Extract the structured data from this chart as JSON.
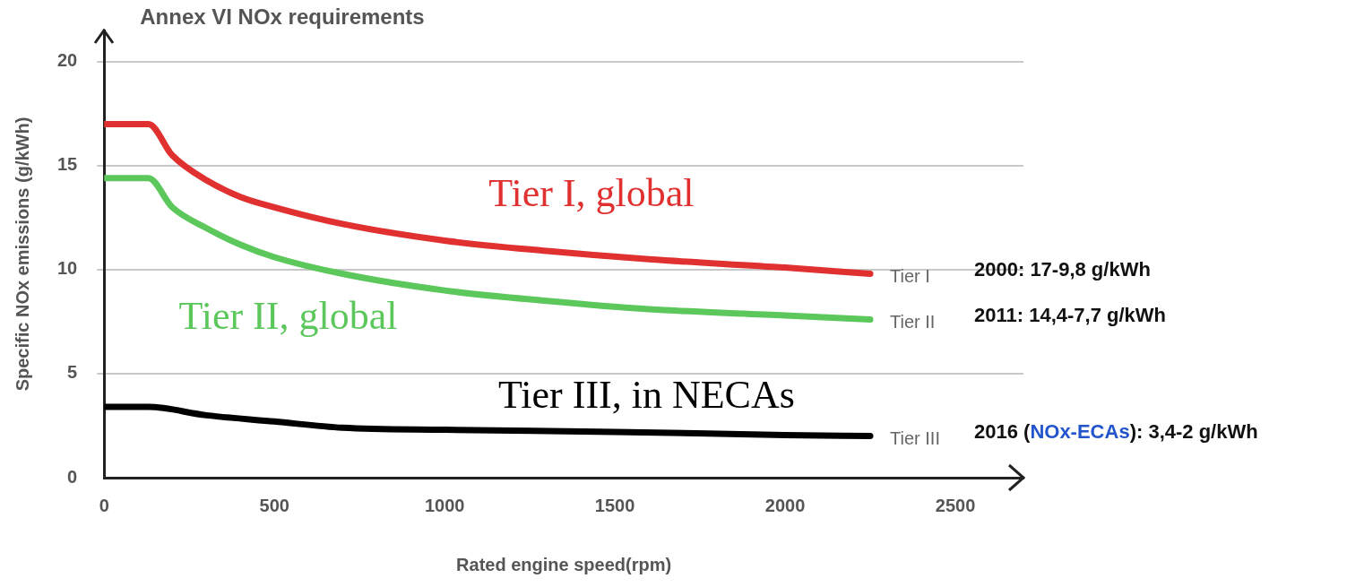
{
  "chart_data": {
    "type": "line",
    "title": "Annex VI NOx requirements",
    "xlabel": "Rated engine speed(rpm)",
    "ylabel": "Specific NOx emissions (g/kWh)",
    "xlim": [
      0,
      2700
    ],
    "ylim": [
      0,
      21.5
    ],
    "xticks": [
      0,
      500,
      1000,
      1500,
      2000,
      2500
    ],
    "yticks": [
      0,
      5,
      10,
      15,
      20
    ],
    "grid": "y",
    "legend": false,
    "marker": "none",
    "line_style": "solid",
    "series": [
      {
        "name": "Tier I",
        "color": "#e03030",
        "x": [
          0,
          130,
          200,
          300,
          400,
          500,
          700,
          1000,
          1300,
          1600,
          2000,
          2250
        ],
        "values": [
          17,
          17,
          15.5,
          14.3,
          13.5,
          13,
          12.2,
          11.4,
          10.9,
          10.5,
          10.1,
          9.8
        ]
      },
      {
        "name": "Tier II",
        "color": "#5cc85c",
        "x": [
          0,
          130,
          200,
          300,
          400,
          500,
          700,
          1000,
          1300,
          1600,
          2000,
          2250
        ],
        "values": [
          14.4,
          14.4,
          13,
          12,
          11.2,
          10.6,
          9.8,
          9,
          8.5,
          8.1,
          7.8,
          7.6
        ]
      },
      {
        "name": "Tier III",
        "color": "#000000",
        "x": [
          0,
          130,
          300,
          500,
          700,
          1000,
          1500,
          2000,
          2250
        ],
        "values": [
          3.4,
          3.4,
          3,
          2.7,
          2.4,
          2.3,
          2.2,
          2.05,
          2
        ]
      }
    ],
    "annotations": [
      "Tier I, global",
      "Tier II, global",
      "Tier III, in NECAs",
      "2000: 17-9,8 g/kWh",
      "2011: 14,4-7,7 g/kWh",
      "2016 (NOx-ECAs): 3,4-2 g/kWh"
    ]
  }
}
